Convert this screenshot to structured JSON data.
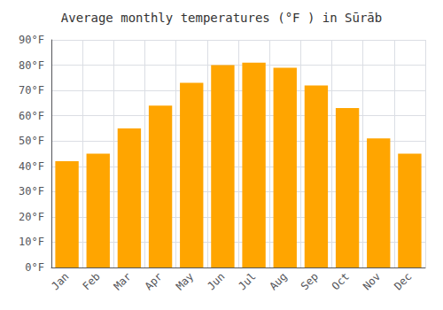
{
  "chart_data": {
    "type": "bar",
    "title": "Average monthly temperatures (°F ) in Sūrāb",
    "categories": [
      "Jan",
      "Feb",
      "Mar",
      "Apr",
      "May",
      "Jun",
      "Jul",
      "Aug",
      "Sep",
      "Oct",
      "Nov",
      "Dec"
    ],
    "values": [
      42,
      45,
      55,
      64,
      73,
      80,
      81,
      79,
      72,
      63,
      51,
      45
    ],
    "color": "#FFA500",
    "ylim": [
      0,
      90
    ],
    "yticks": [
      {
        "value": 0,
        "label": "0°F"
      },
      {
        "value": 10,
        "label": "10°F"
      },
      {
        "value": 20,
        "label": "20°F"
      },
      {
        "value": 30,
        "label": "30°F"
      },
      {
        "value": 40,
        "label": "40°F"
      },
      {
        "value": 50,
        "label": "50°F"
      },
      {
        "value": 60,
        "label": "60°F"
      },
      {
        "value": 70,
        "label": "70°F"
      },
      {
        "value": 80,
        "label": "80°F"
      },
      {
        "value": 90,
        "label": "90°F"
      }
    ],
    "grid": true
  }
}
